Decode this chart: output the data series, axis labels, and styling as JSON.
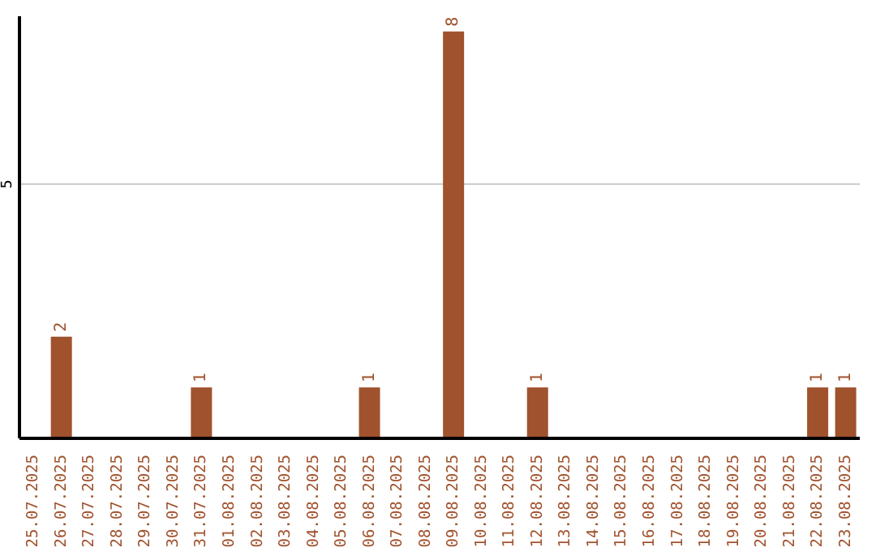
{
  "chart_data": {
    "type": "bar",
    "categories": [
      "25.07.2025",
      "26.07.2025",
      "27.07.2025",
      "28.07.2025",
      "29.07.2025",
      "30.07.2025",
      "31.07.2025",
      "01.08.2025",
      "02.08.2025",
      "03.08.2025",
      "04.08.2025",
      "05.08.2025",
      "06.08.2025",
      "07.08.2025",
      "08.08.2025",
      "09.08.2025",
      "10.08.2025",
      "11.08.2025",
      "12.08.2025",
      "13.08.2025",
      "14.08.2025",
      "15.08.2025",
      "16.08.2025",
      "17.08.2025",
      "18.08.2025",
      "19.08.2025",
      "20.08.2025",
      "21.08.2025",
      "22.08.2025",
      "23.08.2025"
    ],
    "values": [
      0,
      2,
      0,
      0,
      0,
      0,
      1,
      0,
      0,
      0,
      0,
      0,
      1,
      0,
      0,
      8,
      0,
      0,
      1,
      0,
      0,
      0,
      0,
      0,
      0,
      0,
      0,
      0,
      1,
      1
    ],
    "value_labels": [
      null,
      "2",
      null,
      null,
      null,
      null,
      "1",
      null,
      null,
      null,
      null,
      null,
      "1",
      null,
      null,
      "8",
      null,
      null,
      "1",
      null,
      null,
      null,
      null,
      null,
      null,
      null,
      null,
      null,
      "1",
      "1"
    ],
    "color": "#a0522d",
    "ylim": [
      0,
      8.3
    ],
    "yticks": [
      5
    ],
    "grid": "y"
  }
}
